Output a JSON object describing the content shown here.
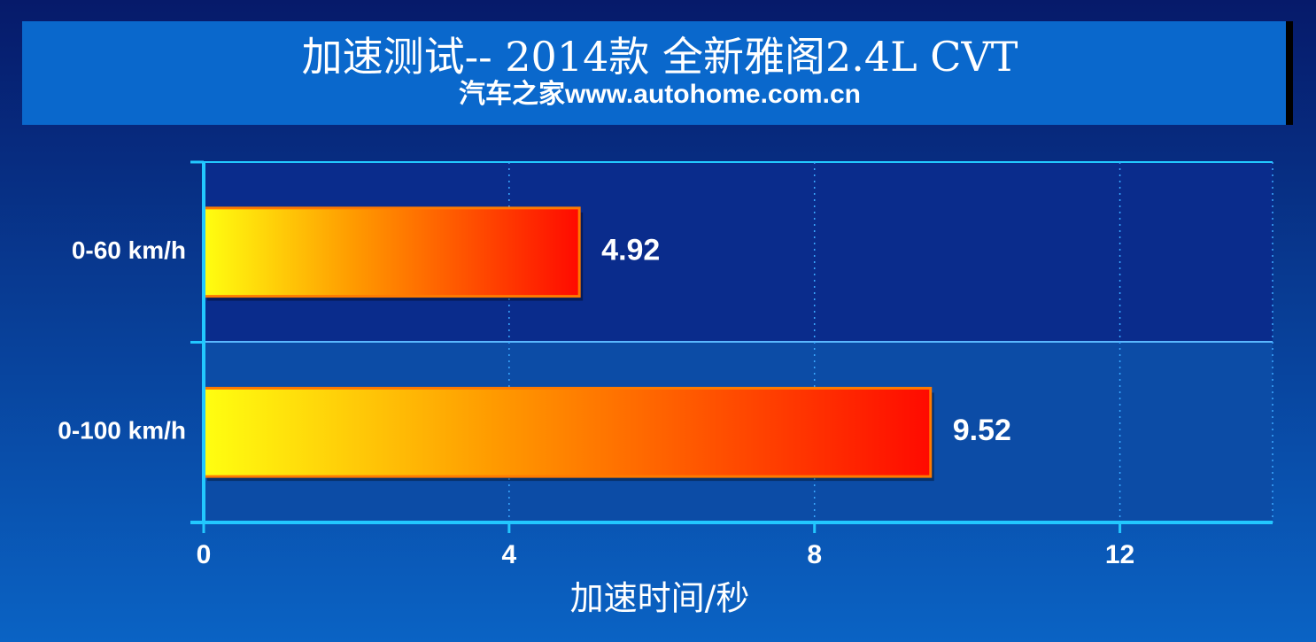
{
  "chart_data": {
    "type": "hbar",
    "title": "加速测试-- 2014款 全新雅阁2.4L CVT",
    "subtitle": "汽车之家www.autohome.com.cn",
    "x_label": "加速时间/秒",
    "categories": [
      "0-60 km/h",
      "0-100 km/h"
    ],
    "values": [
      4.92,
      9.52
    ],
    "xlim": [
      0,
      14
    ],
    "xticks": [
      0,
      4,
      8,
      12
    ],
    "grid": true
  }
}
